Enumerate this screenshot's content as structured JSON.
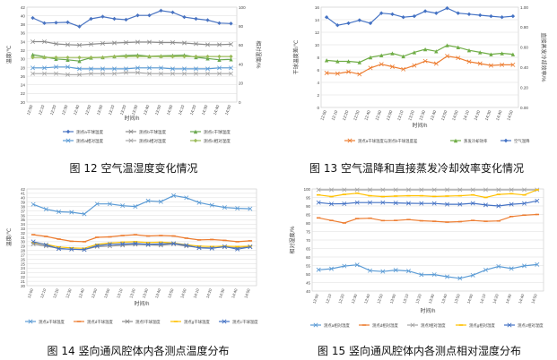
{
  "captions": {
    "fig12": "图 12  空气温湿度变化情况",
    "fig13": "图 13  空气温降和直接蒸发冷却效率变化情况",
    "fig14": "图 14  竖向通风腔体内各测点温度分布",
    "fig15": "图 15  竖向通风腔体内各测点相对湿度分布"
  },
  "chart_data": [
    {
      "id": "fig12",
      "type": "line",
      "xlabel": "时间/h",
      "ylabel": "温度/℃",
      "y2label": "相对湿度/%",
      "ylim": [
        20,
        42
      ],
      "yticks": [
        20,
        22,
        24,
        26,
        28,
        30,
        32,
        34,
        36,
        38,
        40,
        42
      ],
      "y2lim": [
        0,
        100
      ],
      "y2ticks": [
        0,
        20,
        40,
        60,
        80,
        100
      ],
      "categories": [
        "12:00",
        "12:10",
        "12:20",
        "12:30",
        "12:40",
        "12:50",
        "13:00",
        "13:10",
        "13:20",
        "13:30",
        "13:40",
        "13:50",
        "14:00",
        "14:10",
        "14:20",
        "14:30",
        "14:40",
        "14:50"
      ],
      "grid": true,
      "series": [
        {
          "name": "测点a干球温度",
          "axis": "left",
          "color": "#4a74c2",
          "marker": "diamond",
          "values": [
            39.5,
            38.3,
            38.4,
            38.5,
            37.5,
            39.3,
            39.8,
            39.3,
            39.1,
            40.1,
            40.1,
            41.2,
            40.8,
            39.7,
            39.3,
            39.0,
            38.3,
            38.2
          ]
        },
        {
          "name": "测点b干球温度",
          "axis": "left",
          "color": "#8d8d8d",
          "marker": "x",
          "values": [
            34.0,
            34.0,
            33.5,
            33.3,
            33.2,
            33.4,
            33.6,
            33.7,
            33.8,
            33.9,
            33.9,
            33.8,
            33.8,
            33.7,
            33.5,
            33.3,
            33.3,
            33.4
          ]
        },
        {
          "name": "测点c干球温度",
          "axis": "left",
          "color": "#6aa84f",
          "marker": "triangle",
          "values": [
            31.0,
            30.5,
            30.0,
            29.8,
            29.5,
            30.3,
            30.4,
            30.6,
            30.8,
            30.9,
            30.6,
            30.7,
            30.8,
            30.9,
            30.4,
            30.1,
            29.8,
            29.9
          ]
        },
        {
          "name": "测点a相对湿度",
          "axis": "right",
          "color": "#5b9bd5",
          "marker": "x",
          "values": [
            36,
            36,
            37,
            37,
            35,
            35,
            35,
            35,
            35,
            36,
            36,
            36,
            35,
            35,
            35,
            35,
            36,
            36
          ]
        },
        {
          "name": "测点b相对湿度",
          "axis": "right",
          "color": "#a5a5a5",
          "marker": "x",
          "values": [
            30,
            30,
            30,
            29,
            29,
            30,
            30,
            30,
            31,
            31,
            30,
            30,
            30,
            30,
            30,
            30,
            30,
            30
          ]
        },
        {
          "name": "测点c相对湿度",
          "axis": "right",
          "color": "#9bbb59",
          "marker": "diamond",
          "values": [
            47,
            47,
            47,
            47,
            47,
            47,
            47,
            48,
            48,
            48,
            48,
            48,
            48,
            48,
            48,
            48,
            48,
            48
          ]
        }
      ]
    },
    {
      "id": "fig13",
      "type": "line",
      "xlabel": "时间/h",
      "ylabel": "干球温度差/℃",
      "y2label": "直接蒸发冷却效率/%",
      "ylim": [
        0,
        16
      ],
      "yticks": [
        0,
        2,
        4,
        6,
        8,
        10,
        12,
        14,
        16
      ],
      "y2lim": [
        0,
        1.0
      ],
      "y2ticks": [
        "0.00",
        "0.20",
        "0.40",
        "0.60",
        "0.80",
        "1.00"
      ],
      "categories": [
        "12:00",
        "12:10",
        "12:20",
        "12:30",
        "12:40",
        "12:50",
        "13:00",
        "13:10",
        "13:20",
        "13:30",
        "13:40",
        "13:50",
        "14:00",
        "14:10",
        "14:20",
        "14:30",
        "14:40",
        "14:50"
      ],
      "grid": true,
      "series": [
        {
          "name": "测点a干球温度与测点b干球温度差",
          "axis": "left",
          "color": "#ed7d31",
          "marker": "x",
          "values": [
            5.5,
            5.4,
            5.7,
            5.3,
            6.3,
            6.9,
            6.5,
            6.1,
            6.7,
            7.4,
            7.0,
            8.2,
            7.9,
            7.3,
            7.0,
            6.7,
            6.8,
            6.8
          ]
        },
        {
          "name": "蒸发冷却效率",
          "axis": "right",
          "color": "#70ad47",
          "marker": "triangle",
          "values": [
            0.47,
            0.46,
            0.46,
            0.45,
            0.5,
            0.52,
            0.54,
            0.51,
            0.55,
            0.58,
            0.56,
            0.62,
            0.6,
            0.57,
            0.55,
            0.53,
            0.54,
            0.53
          ]
        },
        {
          "name": "空气温降",
          "axis": "right",
          "color": "#4472c4",
          "marker": "diamond",
          "values": [
            0.9,
            0.82,
            0.84,
            0.87,
            0.84,
            0.94,
            0.93,
            0.9,
            0.91,
            0.96,
            0.94,
            0.99,
            0.94,
            0.93,
            0.92,
            0.91,
            0.9,
            0.91
          ]
        }
      ]
    },
    {
      "id": "fig14",
      "type": "line",
      "xlabel": "时间/h",
      "ylabel": "温度/℃",
      "ylim": [
        20,
        42
      ],
      "yticks": [
        20,
        21,
        22,
        23,
        24,
        25,
        26,
        27,
        28,
        29,
        30,
        31,
        32,
        33,
        34,
        35,
        36,
        37,
        38,
        39,
        40,
        41,
        42
      ],
      "categories": [
        "12:00",
        "12:10",
        "12:20",
        "12:30",
        "12:40",
        "12:50",
        "13:00",
        "13:10",
        "13:20",
        "13:30",
        "13:40",
        "13:50",
        "14:00",
        "14:10",
        "14:20",
        "14:30",
        "14:40",
        "14:50"
      ],
      "grid": true,
      "series": [
        {
          "name": "测点a干球温度",
          "axis": "left",
          "color": "#5b9bd5",
          "marker": "x",
          "values": [
            38.5,
            37.4,
            36.8,
            36.7,
            36.3,
            38.6,
            38.6,
            38.2,
            38.0,
            39.3,
            39.1,
            40.5,
            40.0,
            38.9,
            38.3,
            37.8,
            37.6,
            37.5
          ]
        },
        {
          "name": "测点d干球温度",
          "axis": "left",
          "color": "#ed7d31",
          "marker": "dash",
          "values": [
            31.6,
            31.2,
            30.6,
            30.1,
            30.0,
            31.0,
            31.1,
            31.4,
            31.6,
            31.3,
            31.4,
            31.3,
            30.8,
            30.4,
            30.5,
            30.3,
            30.0,
            30.2
          ]
        },
        {
          "name": "测点f干球温度",
          "axis": "left",
          "color": "#8d8d8d",
          "marker": "x",
          "values": [
            29.5,
            29.0,
            28.5,
            28.3,
            28.2,
            28.9,
            29.0,
            29.2,
            29.4,
            29.3,
            29.2,
            29.5,
            29.0,
            28.7,
            28.6,
            28.8,
            28.6,
            28.9
          ]
        },
        {
          "name": "测点g干球温度",
          "axis": "left",
          "color": "#ffc000",
          "marker": "dash",
          "values": [
            29.8,
            29.4,
            28.8,
            28.6,
            28.5,
            29.4,
            29.7,
            29.9,
            30.0,
            29.8,
            29.9,
            29.7,
            29.3,
            29.0,
            28.9,
            29.0,
            28.9,
            29.0
          ]
        },
        {
          "name": "测点c干球温度",
          "axis": "left",
          "color": "#4472c4",
          "marker": "x",
          "values": [
            30.0,
            29.3,
            28.4,
            28.3,
            28.2,
            29.1,
            29.4,
            29.5,
            29.6,
            29.4,
            29.5,
            29.6,
            29.2,
            28.6,
            28.5,
            28.9,
            28.3,
            28.8
          ]
        }
      ]
    },
    {
      "id": "fig15",
      "type": "line",
      "xlabel": "时间/h",
      "ylabel": "相对湿度/%",
      "ylim": [
        40,
        100
      ],
      "yticks": [
        40,
        45,
        50,
        55,
        60,
        65,
        70,
        75,
        80,
        85,
        90,
        95,
        100
      ],
      "categories": [
        "12:00",
        "12:10",
        "12:20",
        "12:30",
        "12:40",
        "12:50",
        "13:00",
        "13:10",
        "13:20",
        "13:30",
        "13:40",
        "13:50",
        "14:00",
        "14:10",
        "14:20",
        "14:30",
        "14:40",
        "14:50"
      ],
      "grid": true,
      "series": [
        {
          "name": "测点a相对湿度",
          "axis": "left",
          "color": "#5b9bd5",
          "marker": "x",
          "values": [
            52.5,
            53.1,
            54.7,
            55.4,
            52.0,
            51.5,
            52.3,
            51.8,
            49.6,
            49.7,
            48.4,
            47.5,
            49.3,
            52.4,
            54.5,
            53.2,
            54.8,
            55.6
          ]
        },
        {
          "name": "测点d相对湿度",
          "axis": "left",
          "color": "#ed7d31",
          "marker": "dash",
          "values": [
            83.0,
            81.5,
            80.0,
            82.6,
            82.8,
            81.4,
            81.5,
            82.0,
            81.3,
            81.0,
            80.5,
            80.8,
            81.5,
            81.0,
            81.2,
            83.8,
            84.6,
            85.0
          ]
        },
        {
          "name": "测点f相对湿度",
          "axis": "left",
          "color": "#a5a5a5",
          "marker": "x",
          "values": [
            99.5,
            99.5,
            99.5,
            99.5,
            99.5,
            99.5,
            99.5,
            99.5,
            99.5,
            99.5,
            99.5,
            99.5,
            99.5,
            99.5,
            99.5,
            99.5,
            99.5,
            99.5
          ]
        },
        {
          "name": "测点g相对湿度",
          "axis": "left",
          "color": "#ffc000",
          "marker": "dash",
          "values": [
            96.5,
            95.5,
            96.8,
            97.5,
            96.0,
            95.5,
            95.8,
            96.0,
            96.0,
            95.6,
            95.8,
            96.0,
            96.5,
            95.0,
            96.8,
            97.2,
            96.5,
            99.5
          ]
        },
        {
          "name": "测点c相对湿度",
          "axis": "left",
          "color": "#4472c4",
          "marker": "x",
          "values": [
            92.0,
            91.2,
            91.3,
            92.0,
            92.0,
            92.0,
            91.8,
            91.6,
            91.5,
            91.5,
            91.0,
            91.0,
            91.6,
            90.6,
            90.0,
            91.0,
            91.5,
            93.0
          ]
        }
      ]
    }
  ]
}
